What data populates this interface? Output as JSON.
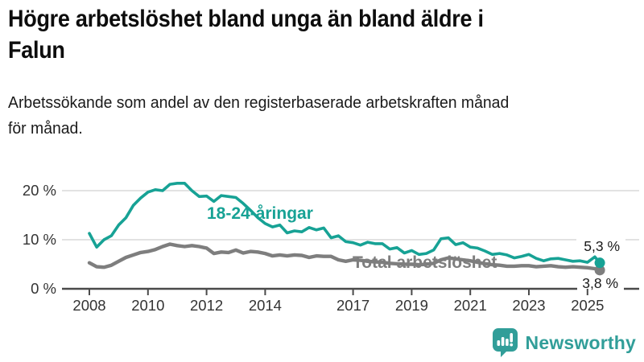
{
  "header": {
    "title_lines": [
      "Högre arbetslöshet bland unga än bland äldre i",
      "Falun"
    ],
    "subtitle_lines": [
      "Arbetssökande som andel av den registerbaserade arbetskraften månad",
      "för månad."
    ]
  },
  "chart_data": {
    "type": "line",
    "title": "Högre arbetslöshet bland unga än bland äldre i Falun",
    "xlabel": "",
    "ylabel": "Arbetssökande som andel av den registerbaserade arbetskraften",
    "unit": "%",
    "grid": "horizontal",
    "legend_position": "inline-labels",
    "xlim": [
      2008,
      2025.6
    ],
    "ylim": [
      0,
      24
    ],
    "x_ticks": [
      {
        "year": 2008,
        "label": "2008"
      },
      {
        "year": 2010,
        "label": "2010"
      },
      {
        "year": 2012,
        "label": "2012"
      },
      {
        "year": 2014,
        "label": "2014"
      },
      {
        "year": 2017,
        "label": "2017"
      },
      {
        "year": 2019,
        "label": "2019"
      },
      {
        "year": 2021,
        "label": "2021"
      },
      {
        "year": 2023,
        "label": "2023"
      },
      {
        "year": 2025,
        "label": "2025"
      }
    ],
    "y_ticks": [
      {
        "value": 0,
        "label": "0 %"
      },
      {
        "value": 10,
        "label": "10 %"
      },
      {
        "value": 20,
        "label": "20 %"
      }
    ],
    "x": [
      2008.0,
      2008.25,
      2008.5,
      2008.75,
      2009.0,
      2009.25,
      2009.5,
      2009.75,
      2010.0,
      2010.25,
      2010.5,
      2010.75,
      2011.0,
      2011.25,
      2011.5,
      2011.75,
      2012.0,
      2012.25,
      2012.5,
      2012.75,
      2013.0,
      2013.25,
      2013.5,
      2013.75,
      2014.0,
      2014.25,
      2014.5,
      2014.75,
      2015.0,
      2015.25,
      2015.5,
      2015.75,
      2016.0,
      2016.25,
      2016.5,
      2016.75,
      2017.0,
      2017.25,
      2017.5,
      2017.75,
      2018.0,
      2018.25,
      2018.5,
      2018.75,
      2019.0,
      2019.25,
      2019.5,
      2019.75,
      2020.0,
      2020.25,
      2020.5,
      2020.75,
      2021.0,
      2021.25,
      2021.5,
      2021.75,
      2022.0,
      2022.25,
      2022.5,
      2022.75,
      2023.0,
      2023.25,
      2023.5,
      2023.75,
      2024.0,
      2024.25,
      2024.5,
      2024.75,
      2025.0,
      2025.25,
      2025.42
    ],
    "series": [
      {
        "name": "youth-18-24",
        "label": "18-24-åringar",
        "color": "#17A295",
        "end_label": "5,3 %",
        "end_value": 5.3,
        "values": [
          11.3,
          8.5,
          10.0,
          10.8,
          13.0,
          14.5,
          17.0,
          18.5,
          19.7,
          20.2,
          20.0,
          21.3,
          21.5,
          21.5,
          20.0,
          18.8,
          18.9,
          17.8,
          19.0,
          18.8,
          18.6,
          17.4,
          16.0,
          14.5,
          13.3,
          12.6,
          13.0,
          11.4,
          11.8,
          11.6,
          12.5,
          12.0,
          12.4,
          10.4,
          10.8,
          9.6,
          9.4,
          8.9,
          9.5,
          9.2,
          9.2,
          8.1,
          8.4,
          7.3,
          7.8,
          7.0,
          7.2,
          7.9,
          10.2,
          10.4,
          9.0,
          9.4,
          8.5,
          8.3,
          7.7,
          7.0,
          7.2,
          6.9,
          6.3,
          6.6,
          7.0,
          6.2,
          5.7,
          6.1,
          6.2,
          5.9,
          5.6,
          5.7,
          5.4,
          6.5,
          5.3
        ]
      },
      {
        "name": "total",
        "label": "Total arbetslöshet",
        "color": "#7E7E7E",
        "end_label": "3,8 %",
        "end_value": 3.8,
        "values": [
          5.3,
          4.5,
          4.4,
          4.8,
          5.6,
          6.4,
          6.9,
          7.4,
          7.6,
          8.0,
          8.6,
          9.1,
          8.8,
          8.6,
          8.8,
          8.6,
          8.3,
          7.2,
          7.5,
          7.4,
          7.9,
          7.3,
          7.6,
          7.5,
          7.2,
          6.7,
          6.9,
          6.7,
          6.9,
          6.8,
          6.4,
          6.7,
          6.6,
          6.6,
          5.9,
          5.6,
          5.9,
          5.8,
          5.6,
          5.5,
          5.4,
          5.2,
          5.1,
          5.0,
          5.0,
          4.9,
          5.0,
          5.2,
          5.9,
          6.3,
          6.1,
          5.9,
          5.7,
          5.4,
          5.1,
          4.9,
          4.8,
          4.6,
          4.6,
          4.7,
          4.7,
          4.5,
          4.6,
          4.7,
          4.5,
          4.4,
          4.5,
          4.4,
          4.3,
          4.1,
          3.8
        ]
      }
    ],
    "colors": {
      "grid": "#D9D9D9",
      "axis": "#4A4A4A",
      "tick_text": "#333333",
      "value_text": "#1A1A1A"
    }
  },
  "footer": {
    "brand": "Newsworthy",
    "brand_color": "#319E99",
    "logo_icon": "bar-chart-speech-bubble"
  }
}
